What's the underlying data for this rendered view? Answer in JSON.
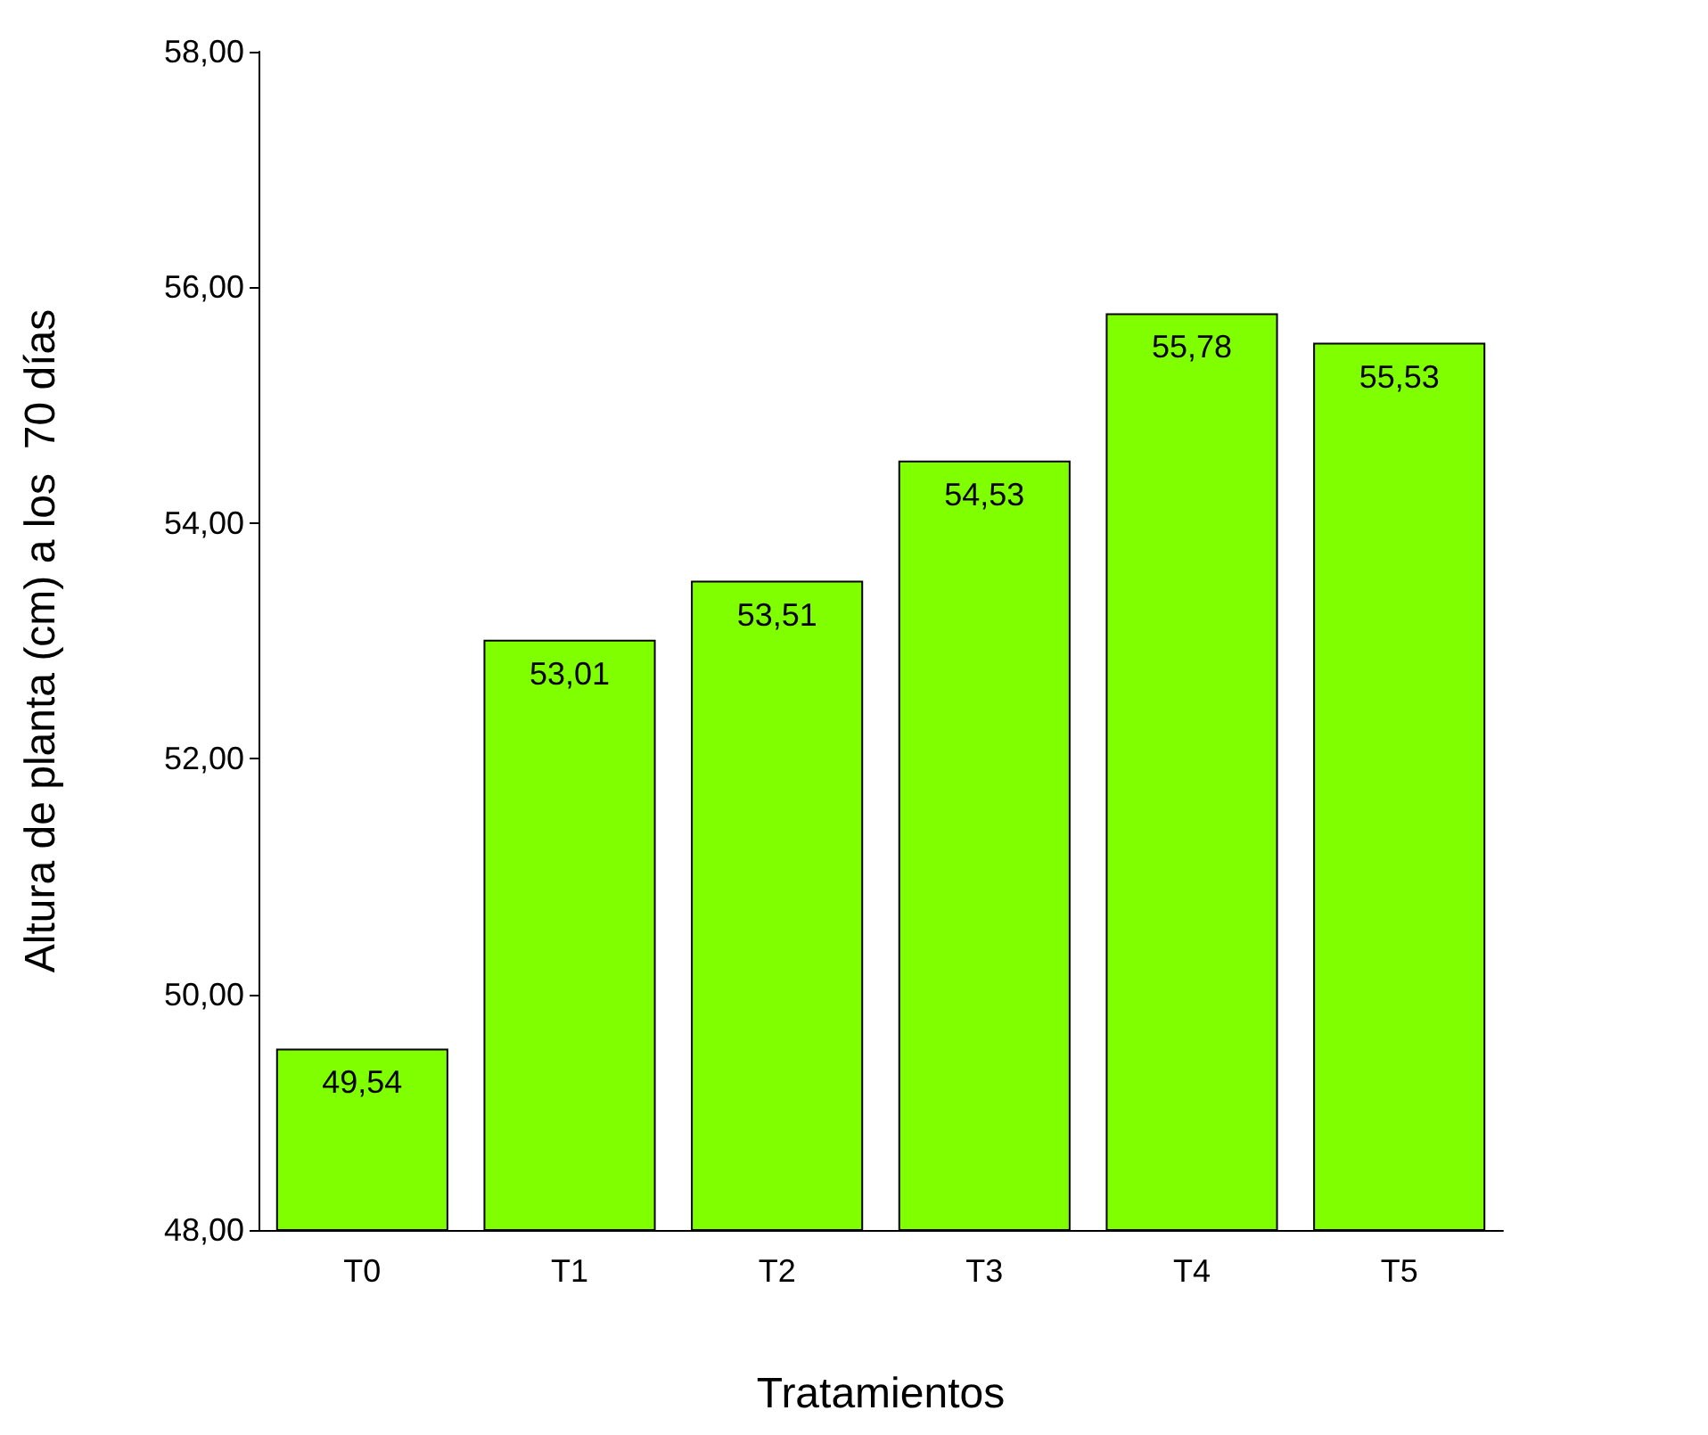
{
  "chart_data": {
    "type": "bar",
    "xlabel": "Tratamientos",
    "ylabel": "Altura de planta (cm) a los  70 días",
    "categories": [
      "T0",
      "T1",
      "T2",
      "T3",
      "T4",
      "T5"
    ],
    "values": [
      49.54,
      53.01,
      53.51,
      54.53,
      55.78,
      55.53
    ],
    "value_labels": [
      "49,54",
      "53,01",
      "53,51",
      "54,53",
      "55,78",
      "55,53"
    ],
    "color": "#80ff00",
    "ylim": [
      48,
      58
    ],
    "yticks": [
      {
        "value": 48,
        "label": "48,00"
      },
      {
        "value": 50,
        "label": "50,00"
      },
      {
        "value": 52,
        "label": "52,00"
      },
      {
        "value": 54,
        "label": "54,00"
      },
      {
        "value": 56,
        "label": "56,00"
      },
      {
        "value": 58,
        "label": "58,00"
      }
    ],
    "grid": false
  }
}
